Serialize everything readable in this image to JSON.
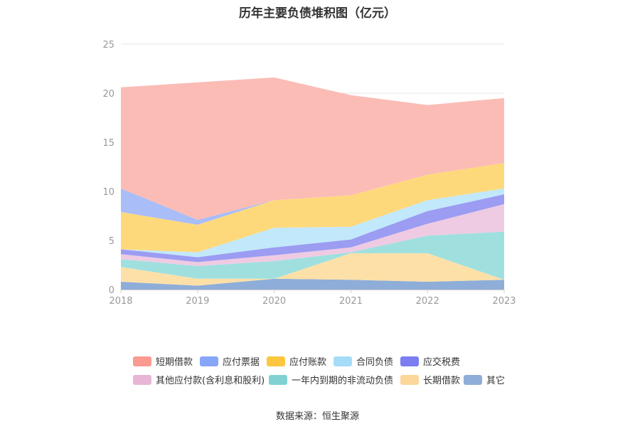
{
  "chart_data": {
    "type": "area",
    "stacked": true,
    "title": "历年主要负债堆积图（亿元）",
    "source": "数据来源：恒生聚源",
    "x": [
      "2018",
      "2019",
      "2020",
      "2021",
      "2022",
      "2023"
    ],
    "ylim": [
      0,
      25
    ],
    "yticks": [
      "0",
      "5",
      "10",
      "15",
      "20",
      "25"
    ],
    "grid": true,
    "legend_position": "bottom",
    "series": [
      {
        "name": "其它",
        "color": "#8eaed9",
        "values": [
          0.8,
          0.4,
          1.1,
          1.0,
          0.8,
          1.0
        ]
      },
      {
        "name": "长期借款",
        "color": "#fde0a8",
        "values": [
          1.5,
          0.7,
          0.0,
          2.7,
          2.9,
          0.0
        ]
      },
      {
        "name": "一年内到期的非流动负债",
        "color": "#9fe0df",
        "values": [
          0.8,
          1.3,
          1.8,
          0.1,
          1.8,
          4.9
        ]
      },
      {
        "name": "其他应付款(含利息和股利)",
        "color": "#eecbe2",
        "values": [
          0.5,
          0.4,
          0.6,
          0.5,
          1.2,
          2.8
        ]
      },
      {
        "name": "应交税费",
        "color": "#9b9cf2",
        "values": [
          0.5,
          0.5,
          0.8,
          0.8,
          1.3,
          1.0
        ]
      },
      {
        "name": "合同负债",
        "color": "#c2e8fb",
        "values": [
          0.0,
          0.5,
          2.0,
          1.3,
          1.1,
          0.6
        ]
      },
      {
        "name": "应付账款",
        "color": "#fed97c",
        "values": [
          3.8,
          2.8,
          2.8,
          3.2,
          2.6,
          2.6
        ]
      },
      {
        "name": "应付票据",
        "color": "#a9bdf8",
        "values": [
          2.4,
          0.5,
          0.0,
          0.0,
          0.0,
          0.0
        ]
      },
      {
        "name": "短期借款",
        "color": "#fbbcb6",
        "values": [
          10.3,
          14.0,
          12.5,
          10.2,
          7.1,
          6.6
        ]
      }
    ],
    "legend": [
      {
        "name": "短期借款",
        "color": "#fa9a90"
      },
      {
        "name": "应付票据",
        "color": "#88a6f7"
      },
      {
        "name": "应付账款",
        "color": "#fdc63f"
      },
      {
        "name": "合同负债",
        "color": "#a5dcf8"
      },
      {
        "name": "应交税费",
        "color": "#7b7df0"
      },
      {
        "name": "其他应付款(含利息和股利)",
        "color": "#e8b5d6"
      },
      {
        "name": "一年内到期的非流动负债",
        "color": "#80d2d0"
      },
      {
        "name": "长期借款",
        "color": "#fdd69a"
      },
      {
        "name": "其它",
        "color": "#8eaed9"
      }
    ]
  }
}
